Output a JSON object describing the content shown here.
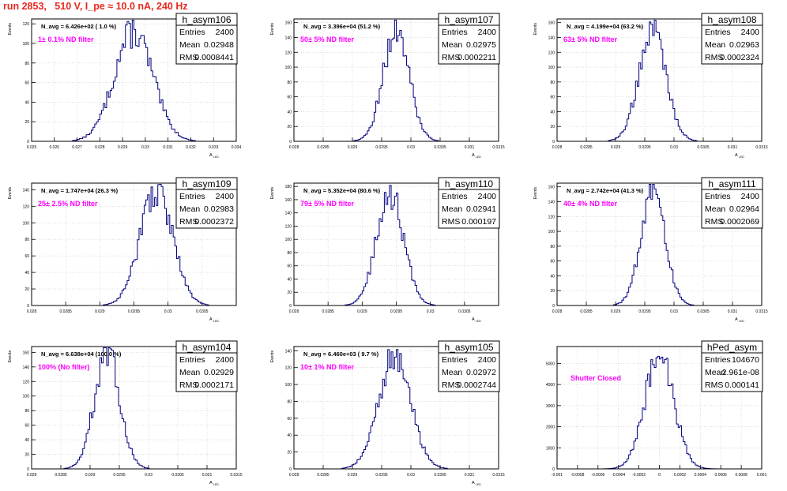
{
  "header": {
    "title": "run 2853,   510 V, I_pe ≈ 10.0 nA, 240 Hz"
  },
  "colors": {
    "title": "#e8281e",
    "histogram": "#00007f",
    "annotation": "#ff00ff",
    "grid": "#c8c8c8"
  },
  "chart_data": [
    {
      "type": "histogram",
      "name": "h_asym106",
      "stats": [
        [
          "Entries",
          "2400"
        ],
        [
          "Mean",
          "0.02948"
        ],
        [
          "RMS",
          "0.0008441"
        ]
      ],
      "navg": "N_avg = 6.426e+02 ( 1.0 %)",
      "filter": "1± 0.1% ND filter",
      "xlabel": "A",
      "xlabel_sub": "LED",
      "ylabel": "Events",
      "xlim": [
        0.025,
        0.034
      ],
      "ylim": [
        0,
        125
      ],
      "xticks": [
        0.025,
        0.026,
        0.027,
        0.028,
        0.029,
        0.03,
        0.031,
        0.032,
        0.033,
        0.034
      ],
      "xticklabels": [
        "0.025",
        "0.026",
        "0.027",
        "0.028",
        "0.029",
        "0.03",
        "0.031",
        "0.032",
        "0.033",
        "0.034"
      ],
      "yticks": [
        0,
        20,
        40,
        60,
        80,
        100,
        120
      ],
      "mean": 0.02948,
      "rms": 0.0008441,
      "peak": 112
    },
    {
      "type": "histogram",
      "name": "h_asym107",
      "stats": [
        [
          "Entries",
          "2400"
        ],
        [
          "Mean",
          "0.02975"
        ],
        [
          "RMS",
          "0.0002211"
        ]
      ],
      "navg": "N_avg = 3.396e+04 (51.2 %)",
      "filter": "50± 5% ND filter",
      "xlabel": "A",
      "xlabel_sub": "LED",
      "ylabel": "Events",
      "xlim": [
        0.028,
        0.0315
      ],
      "ylim": [
        0,
        165
      ],
      "xticks": [
        0.028,
        0.0285,
        0.029,
        0.0295,
        0.03,
        0.0305,
        0.031,
        0.0315
      ],
      "xticklabels": [
        "0.028",
        "0.0285",
        "0.029",
        "0.0295",
        "0.03",
        "0.0305",
        "0.031",
        "0.0315"
      ],
      "yticks": [
        0,
        20,
        40,
        60,
        80,
        100,
        120,
        140,
        160
      ],
      "mean": 0.02975,
      "rms": 0.0002211,
      "peak": 150
    },
    {
      "type": "histogram",
      "name": "h_asym108",
      "stats": [
        [
          "Entries",
          "2400"
        ],
        [
          "Mean",
          "0.02963"
        ],
        [
          "RMS",
          "0.0002324"
        ]
      ],
      "navg": "N_avg = 4.199e+04 (63.2 %)",
      "filter": "63± 5% ND filter",
      "xlabel": "A",
      "xlabel_sub": "LED",
      "ylabel": "Events",
      "xlim": [
        0.028,
        0.0315
      ],
      "ylim": [
        0,
        165
      ],
      "xticks": [
        0.028,
        0.0285,
        0.029,
        0.0295,
        0.03,
        0.0305,
        0.031,
        0.0315
      ],
      "xticklabels": [
        "0.028",
        "0.0285",
        "0.029",
        "0.0295",
        "0.03",
        "0.0305",
        "0.031",
        "0.0315"
      ],
      "yticks": [
        0,
        20,
        40,
        60,
        80,
        100,
        120,
        140,
        160
      ],
      "mean": 0.02963,
      "rms": 0.0002324,
      "peak": 150
    },
    {
      "type": "histogram",
      "name": "h_asym109",
      "stats": [
        [
          "Entries",
          "2400"
        ],
        [
          "Mean",
          "0.02983"
        ],
        [
          "RMS",
          "0.0002372"
        ]
      ],
      "navg": "N_avg = 1.747e+04 (26.3 %)",
      "filter": "25± 2.5% ND filter",
      "xlabel": "A",
      "xlabel_sub": "LED",
      "ylabel": "Events",
      "xlim": [
        0.028,
        0.031
      ],
      "ylim": [
        0,
        148
      ],
      "xticks": [
        0.028,
        0.0285,
        0.029,
        0.0295,
        0.03,
        0.0305
      ],
      "xticklabels": [
        "0.028",
        "0.0285",
        "0.029",
        "0.0295",
        "0.03",
        "0.0305"
      ],
      "yticks": [
        0,
        20,
        40,
        60,
        80,
        100,
        120,
        140
      ],
      "mean": 0.02983,
      "rms": 0.0002372,
      "peak": 140
    },
    {
      "type": "histogram",
      "name": "h_asym110",
      "stats": [
        [
          "Entries",
          "2400"
        ],
        [
          "Mean",
          "0.02941"
        ],
        [
          "RMS",
          "0.000197"
        ]
      ],
      "navg": "N_avg = 5.352e+04 (80.6 %)",
      "filter": "79± 5% ND filter",
      "xlabel": "A",
      "xlabel_sub": "LED",
      "ylabel": "Events",
      "xlim": [
        0.028,
        0.031
      ],
      "ylim": [
        0,
        185
      ],
      "xticks": [
        0.028,
        0.0285,
        0.029,
        0.0295,
        0.03,
        0.0305
      ],
      "xticklabels": [
        "0.028",
        "0.0285",
        "0.029",
        "0.0295",
        "0.03",
        "0.0305"
      ],
      "yticks": [
        0,
        20,
        40,
        60,
        80,
        100,
        120,
        140,
        160,
        180
      ],
      "mean": 0.02941,
      "rms": 0.000197,
      "peak": 170
    },
    {
      "type": "histogram",
      "name": "h_asym111",
      "stats": [
        [
          "Entries",
          "2400"
        ],
        [
          "Mean",
          "0.02964"
        ],
        [
          "RMS",
          "0.0002069"
        ]
      ],
      "navg": "N_avg = 2.742e+04 (41.3 %)",
      "filter": "40± 4% ND filter",
      "xlabel": "A",
      "xlabel_sub": "LED",
      "ylabel": "Events",
      "xlim": [
        0.028,
        0.0315
      ],
      "ylim": [
        0,
        165
      ],
      "xticks": [
        0.028,
        0.0285,
        0.029,
        0.0295,
        0.03,
        0.0305,
        0.031,
        0.0315
      ],
      "xticklabels": [
        "0.028",
        "0.0285",
        "0.029",
        "0.0295",
        "0.03",
        "0.0305",
        "0.031",
        "0.0315"
      ],
      "yticks": [
        0,
        20,
        40,
        60,
        80,
        100,
        120,
        140,
        160
      ],
      "mean": 0.02964,
      "rms": 0.0002069,
      "peak": 155
    },
    {
      "type": "histogram",
      "name": "h_asym104",
      "stats": [
        [
          "Entries",
          "2400"
        ],
        [
          "Mean",
          "0.02929"
        ],
        [
          "RMS",
          "0.0002171"
        ]
      ],
      "navg": "N_avg = 6.638e+04 (100.0 %)",
      "filter": "100% (No filter)",
      "xlabel": "A",
      "xlabel_sub": "LED",
      "ylabel": "Events",
      "xlim": [
        0.028,
        0.0315
      ],
      "ylim": [
        0,
        168
      ],
      "xticks": [
        0.028,
        0.0285,
        0.029,
        0.0295,
        0.03,
        0.0305,
        0.031,
        0.0315
      ],
      "xticklabels": [
        "0.028",
        "0.0285",
        "0.029",
        "0.0295",
        "0.03",
        "0.0305",
        "0.031",
        "0.0315"
      ],
      "yticks": [
        0,
        20,
        40,
        60,
        80,
        100,
        120,
        140,
        160
      ],
      "mean": 0.02929,
      "rms": 0.0002171,
      "peak": 158
    },
    {
      "type": "histogram",
      "name": "h_asym105",
      "stats": [
        [
          "Entries",
          "2400"
        ],
        [
          "Mean",
          "0.02972"
        ],
        [
          "RMS",
          "0.0002744"
        ]
      ],
      "navg": "N_avg = 6.460e+03 ( 9.7 %)",
      "filter": "10± 1% ND filter",
      "xlabel": "A",
      "xlabel_sub": "LED",
      "ylabel": "Events",
      "xlim": [
        0.028,
        0.0315
      ],
      "ylim": [
        0,
        145
      ],
      "xticks": [
        0.028,
        0.0285,
        0.029,
        0.0295,
        0.03,
        0.0305,
        0.031,
        0.0315
      ],
      "xticklabels": [
        "0.028",
        "0.0285",
        "0.029",
        "0.0295",
        "0.03",
        "0.0305",
        "0.031",
        "0.0315"
      ],
      "yticks": [
        0,
        20,
        40,
        60,
        80,
        100,
        120,
        140
      ],
      "mean": 0.02972,
      "rms": 0.0002744,
      "peak": 132
    },
    {
      "type": "histogram",
      "name": "hPed_asym",
      "stats": [
        [
          "Entries",
          "104670"
        ],
        [
          "Mean",
          "2.961e-08"
        ],
        [
          "RMS",
          "0.000141"
        ]
      ],
      "navg": "",
      "filter": "Shutter Closed",
      "xlabel": "",
      "xlabel_sub": "",
      "ylabel": "",
      "xlim": [
        -0.001,
        0.001
      ],
      "ylim": [
        0,
        5800
      ],
      "xticks": [
        -0.001,
        -0.0008,
        -0.0006,
        -0.0004,
        -0.0002,
        0,
        0.0002,
        0.0004,
        0.0006,
        0.0008,
        0.001
      ],
      "xticklabels": [
        "-0.001",
        "-0.0008",
        "-0.0006",
        "-0.0004",
        "-0.0002",
        "0",
        "0.0002",
        "0.0004",
        "0.0006",
        "0.0008",
        "0.001"
      ],
      "yticks": [
        0,
        1000,
        2000,
        3000,
        4000,
        5000
      ],
      "mean": 0.0,
      "rms": 0.000141,
      "peak": 5400
    }
  ]
}
